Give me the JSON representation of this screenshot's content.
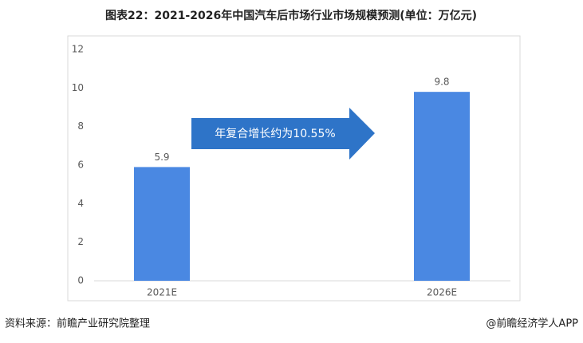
{
  "chart_data": {
    "type": "bar",
    "title": "图表22：2021-2026年中国汽车后市场行业市场规模预测(单位：万亿元)",
    "categories": [
      "2021E",
      "2026E"
    ],
    "values": [
      5.9,
      9.8
    ],
    "color": "#4a88e2",
    "ylim": [
      0,
      12
    ],
    "yticks": [
      0,
      2,
      4,
      6,
      8,
      10,
      12
    ],
    "grid": false,
    "annotation": "年复合增长约为10.55%",
    "source": "资料来源：前瞻产业研究院整理",
    "credit": "@前瞻经济学人APP"
  }
}
